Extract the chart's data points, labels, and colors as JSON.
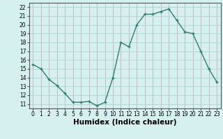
{
  "x": [
    0,
    1,
    2,
    3,
    4,
    5,
    6,
    7,
    8,
    9,
    10,
    11,
    12,
    13,
    14,
    15,
    16,
    17,
    18,
    19,
    20,
    21,
    22,
    23
  ],
  "y": [
    15.5,
    15.0,
    13.8,
    13.1,
    12.2,
    11.2,
    11.2,
    11.3,
    10.8,
    11.2,
    14.0,
    18.0,
    17.5,
    20.0,
    21.2,
    21.2,
    21.5,
    21.8,
    20.5,
    19.2,
    19.0,
    17.0,
    15.0,
    13.5
  ],
  "line_color": "#2e7d6e",
  "marker": "+",
  "marker_size": 3,
  "marker_lw": 1.0,
  "line_width": 1.0,
  "bg_color": "#d6f0f0",
  "grid_color": "#b0d8d8",
  "xlabel": "Humidex (Indice chaleur)",
  "xlim": [
    -0.5,
    23.5
  ],
  "ylim": [
    10.5,
    22.5
  ],
  "yticks": [
    11,
    12,
    13,
    14,
    15,
    16,
    17,
    18,
    19,
    20,
    21,
    22
  ],
  "xticks": [
    0,
    1,
    2,
    3,
    4,
    5,
    6,
    7,
    8,
    9,
    10,
    11,
    12,
    13,
    14,
    15,
    16,
    17,
    18,
    19,
    20,
    21,
    22,
    23
  ],
  "xtick_labels": [
    "0",
    "1",
    "2",
    "3",
    "4",
    "5",
    "6",
    "7",
    "8",
    "9",
    "10",
    "11",
    "12",
    "13",
    "14",
    "15",
    "16",
    "17",
    "18",
    "19",
    "20",
    "21",
    "22",
    "23"
  ],
  "tick_fontsize": 5.5,
  "xlabel_fontsize": 7.5
}
